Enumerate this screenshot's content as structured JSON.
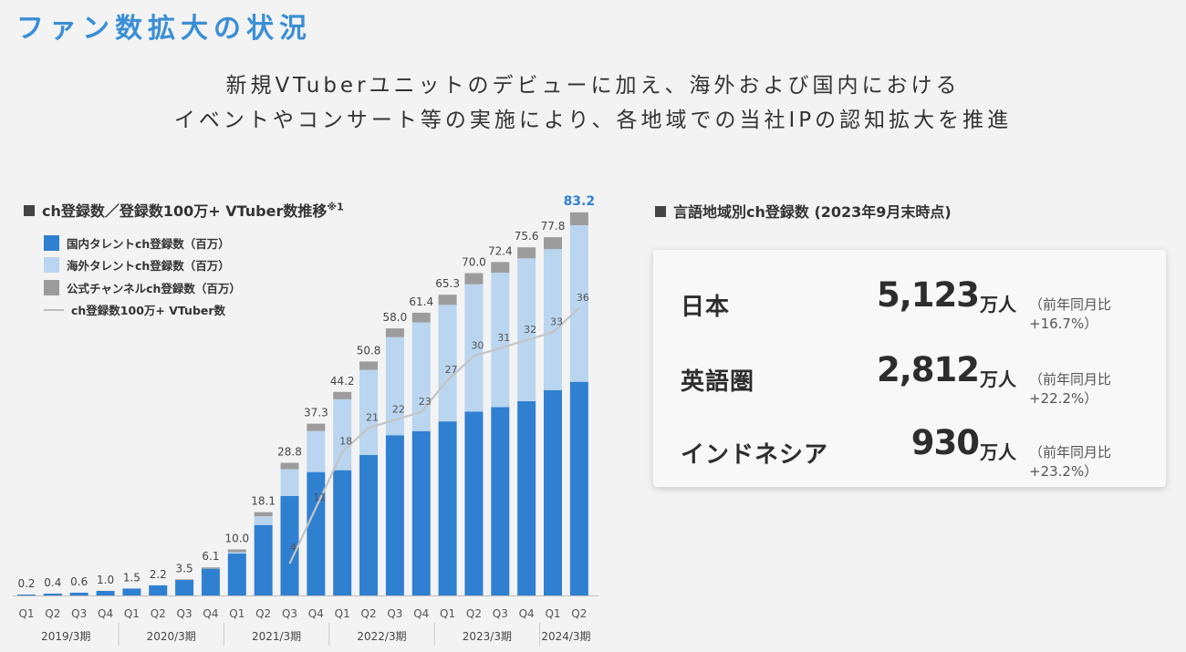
{
  "header": {
    "title": "ファン数拡大の状況",
    "line1": "新規VTuberユニットのデビューに加え、海外および国内における",
    "line2": "イベントやコンサート等の実施により、各地域での当社IPの認知拡大を推進"
  },
  "left_section": {
    "heading": "ch登録数／登録数100万+ VTuber数推移",
    "note": "※1"
  },
  "right_section": {
    "heading": "言語地域別ch登録数 (2023年9月末時点)",
    "rows": [
      {
        "name": "日本",
        "value": "5,123",
        "unit": "万人",
        "yoy": "（前年同月比+16.7%）"
      },
      {
        "name": "英語圏",
        "value": "2,812",
        "unit": "万人",
        "yoy": "（前年同月比+22.2%）"
      },
      {
        "name": "インドネシア",
        "value": "930",
        "unit": "万人",
        "yoy": "（前年同月比+23.2%）"
      }
    ]
  },
  "colors": {
    "domestic": "#2f80d1",
    "overseas": "#b9d5ef",
    "official": "#9c9c9c",
    "vtuber_line": "#c4c4c4",
    "accent": "#2f80d1"
  },
  "chart_data": {
    "type": "bar",
    "stacked": true,
    "legend": [
      "国内タレントch登録数（百万）",
      "海外タレントch登録数（百万）",
      "公式チャンネルch登録数（百万）",
      "ch登録数100万+ VTuber数"
    ],
    "categories": [
      "Q1",
      "Q2",
      "Q3",
      "Q4",
      "Q1",
      "Q2",
      "Q3",
      "Q4",
      "Q1",
      "Q2",
      "Q3",
      "Q4",
      "Q1",
      "Q2",
      "Q3",
      "Q4",
      "Q1",
      "Q2",
      "Q3",
      "Q4",
      "Q1",
      "Q2"
    ],
    "fiscal_years": [
      {
        "label": "2019/3期",
        "quarters": 4
      },
      {
        "label": "2020/3期",
        "quarters": 4
      },
      {
        "label": "2021/3期",
        "quarters": 4
      },
      {
        "label": "2022/3期",
        "quarters": 4
      },
      {
        "label": "2023/3期",
        "quarters": 4
      },
      {
        "label": "2024/3期",
        "quarters": 2
      }
    ],
    "totals": [
      0.2,
      0.4,
      0.6,
      1.0,
      1.5,
      2.2,
      3.5,
      6.1,
      10.0,
      18.1,
      28.8,
      37.3,
      44.2,
      50.8,
      58.0,
      61.4,
      65.3,
      70.0,
      72.4,
      75.6,
      77.8,
      83.2
    ],
    "total_labels": [
      "0.2",
      "0.4",
      "0.6",
      "1.0",
      "1.5",
      "2.2",
      "3.5",
      "6.1",
      "10.0",
      "18.1",
      "28.8",
      "37.3",
      "44.2",
      "50.8",
      "58.0",
      "61.4",
      "65.3",
      "70.0",
      "72.4",
      "75.6",
      "77.8",
      "83.2"
    ],
    "series": [
      {
        "name": "国内タレントch登録数（百万）",
        "values": [
          0.2,
          0.4,
          0.6,
          1.0,
          1.5,
          2.2,
          3.4,
          5.8,
          9.1,
          15.3,
          21.6,
          26.8,
          27.2,
          30.5,
          34.8,
          35.7,
          37.8,
          39.9,
          40.9,
          42.2,
          44.6,
          46.4
        ]
      },
      {
        "name": "海外タレントch登録数（百万）",
        "values": [
          0,
          0,
          0,
          0,
          0,
          0,
          0,
          0,
          0.3,
          1.9,
          5.8,
          8.9,
          15.4,
          18.5,
          21.3,
          23.6,
          25.3,
          27.7,
          29.2,
          31.0,
          30.6,
          34.0
        ]
      },
      {
        "name": "公式チャンネルch登録数（百万）",
        "values": [
          0,
          0,
          0,
          0,
          0,
          0,
          0.1,
          0.3,
          0.6,
          0.9,
          1.4,
          1.6,
          1.6,
          1.8,
          1.9,
          2.1,
          2.2,
          2.4,
          2.3,
          2.4,
          2.6,
          2.8
        ]
      }
    ],
    "vtuber_count": {
      "name": "ch登録数100万+ VTuber数",
      "start_index": 10,
      "values": [
        4,
        11,
        18,
        21,
        22,
        23,
        27,
        30,
        31,
        32,
        33,
        36
      ]
    },
    "ylim": [
      0,
      90
    ],
    "highlight_last_label": true
  }
}
